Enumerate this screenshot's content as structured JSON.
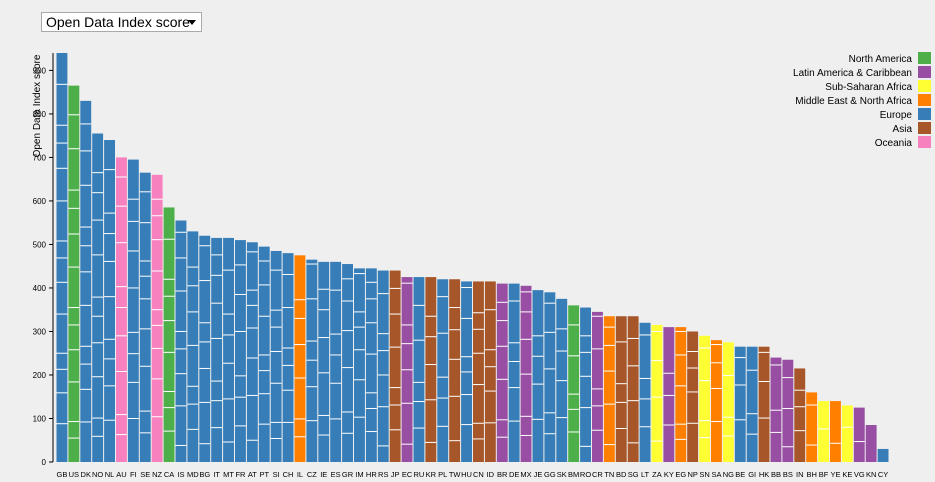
{
  "selector": {
    "value": "Open Data Index score"
  },
  "chart_data": {
    "type": "bar",
    "title": "",
    "ylabel": "Open Data Index score",
    "xlabel": "",
    "ylim": [
      0,
      940
    ],
    "yticks": [
      0,
      100,
      200,
      300,
      400,
      500,
      600,
      700,
      800,
      900
    ],
    "legend": [
      {
        "name": "North America",
        "color": "#4daf4a"
      },
      {
        "name": "Latin America & Caribbean",
        "color": "#984ea3"
      },
      {
        "name": "Sub-Saharan Africa",
        "color": "#ffff33"
      },
      {
        "name": "Middle East & North Africa",
        "color": "#ff7f00"
      },
      {
        "name": "Europe",
        "color": "#377eb8"
      },
      {
        "name": "Asia",
        "color": "#a65628"
      },
      {
        "name": "Oceania",
        "color": "#f781bf"
      }
    ],
    "categories": [
      "GB",
      "US",
      "DK",
      "NO",
      "NL",
      "AU",
      "FI",
      "SE",
      "NZ",
      "CA",
      "IS",
      "MD",
      "BG",
      "IT",
      "MT",
      "FR",
      "AT",
      "PT",
      "SI",
      "CH",
      "IL",
      "CZ",
      "IE",
      "ES",
      "GR",
      "IM",
      "HR",
      "RS",
      "JP",
      "EC",
      "RU",
      "KR",
      "PL",
      "TW",
      "HU",
      "CN",
      "ID",
      "BR",
      "DE",
      "MX",
      "JE",
      "GG",
      "SK",
      "BM",
      "RO",
      "CR",
      "TN",
      "BD",
      "SG",
      "LT",
      "ZA",
      "KY",
      "EG",
      "NP",
      "SN",
      "SA",
      "NG",
      "BE",
      "GI",
      "HK",
      "BB",
      "BS",
      "IN",
      "BH",
      "BF",
      "YE",
      "KE",
      "VG",
      "KN",
      "CY"
    ],
    "regions": [
      "Europe",
      "North America",
      "Europe",
      "Europe",
      "Europe",
      "Oceania",
      "Europe",
      "Europe",
      "Oceania",
      "North America",
      "Europe",
      "Europe",
      "Europe",
      "Europe",
      "Europe",
      "Europe",
      "Europe",
      "Europe",
      "Europe",
      "Europe",
      "Middle East & North Africa",
      "Europe",
      "Europe",
      "Europe",
      "Europe",
      "Europe",
      "Europe",
      "Europe",
      "Asia",
      "Latin America & Caribbean",
      "Europe",
      "Asia",
      "Europe",
      "Asia",
      "Europe",
      "Asia",
      "Asia",
      "Latin America & Caribbean",
      "Europe",
      "Latin America & Caribbean",
      "Europe",
      "Europe",
      "Europe",
      "North America",
      "Europe",
      "Latin America & Caribbean",
      "Middle East & North Africa",
      "Asia",
      "Asia",
      "Europe",
      "Sub-Saharan Africa",
      "Latin America & Caribbean",
      "Middle East & North Africa",
      "Asia",
      "Sub-Saharan Africa",
      "Middle East & North Africa",
      "Sub-Saharan Africa",
      "Europe",
      "Europe",
      "Asia",
      "Latin America & Caribbean",
      "Latin America & Caribbean",
      "Asia",
      "Middle East & North Africa",
      "Sub-Saharan Africa",
      "Middle East & North Africa",
      "Sub-Saharan Africa",
      "Latin America & Caribbean",
      "Latin America & Caribbean",
      "Europe"
    ],
    "values": [
      940,
      865,
      830,
      755,
      740,
      700,
      695,
      665,
      660,
      585,
      555,
      530,
      520,
      515,
      515,
      510,
      505,
      495,
      485,
      480,
      475,
      465,
      460,
      460,
      455,
      445,
      445,
      440,
      440,
      425,
      425,
      425,
      420,
      420,
      415,
      415,
      415,
      410,
      410,
      405,
      395,
      390,
      375,
      360,
      355,
      345,
      335,
      335,
      335,
      320,
      315,
      310,
      310,
      300,
      290,
      280,
      275,
      265,
      265,
      265,
      240,
      235,
      215,
      160,
      140,
      140,
      130,
      125,
      85,
      30
    ]
  }
}
